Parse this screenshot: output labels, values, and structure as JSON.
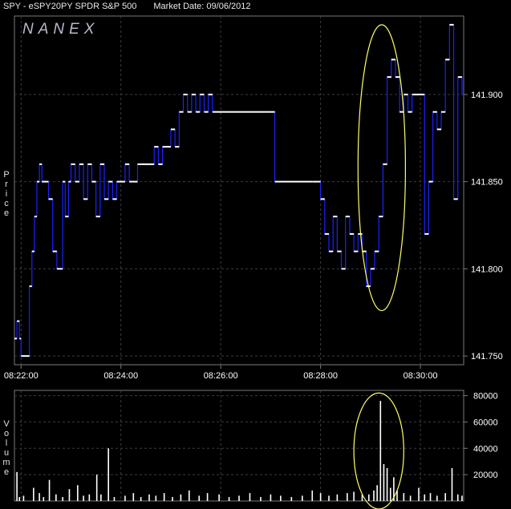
{
  "header": {
    "symbol": "SPY - eSPY20PY SPDR S&P 500",
    "market_date": "Market Date: 09/06/2012"
  },
  "watermark": "NANEX",
  "colors": {
    "background": "#000000",
    "grid": "#3c3c3c",
    "frame": "#7a7a7a",
    "price_line": "#1a22ff",
    "trade_mark": "#ffffff",
    "highlight": "#ffff66",
    "text": "#ffffff"
  },
  "chart_data": [
    {
      "type": "line",
      "ylabel": "Price",
      "ylim": [
        141.745,
        141.945
      ],
      "xlim": [
        "08:21:52",
        "08:30:52"
      ],
      "x_ticks": [
        "08:22:00",
        "08:24:00",
        "08:26:00",
        "08:28:00",
        "08:30:00"
      ],
      "y_ticks": [
        141.75,
        141.8,
        141.85,
        141.9
      ],
      "y_tick_labels": [
        "141.750",
        "141.800",
        "141.850",
        "141.900"
      ],
      "grid": true,
      "price_points": [
        [
          "08:21:52",
          141.76
        ],
        [
          "08:21:55",
          141.77
        ],
        [
          "08:21:58",
          141.76
        ],
        [
          "08:22:00",
          141.75
        ],
        [
          "08:22:10",
          141.79
        ],
        [
          "08:22:13",
          141.81
        ],
        [
          "08:22:16",
          141.83
        ],
        [
          "08:22:19",
          141.85
        ],
        [
          "08:22:22",
          141.86
        ],
        [
          "08:22:25",
          141.85
        ],
        [
          "08:22:33",
          141.84
        ],
        [
          "08:22:38",
          141.81
        ],
        [
          "08:22:43",
          141.8
        ],
        [
          "08:22:50",
          141.85
        ],
        [
          "08:22:53",
          141.83
        ],
        [
          "08:22:57",
          141.85
        ],
        [
          "08:23:00",
          141.86
        ],
        [
          "08:23:05",
          141.85
        ],
        [
          "08:23:10",
          141.86
        ],
        [
          "08:23:15",
          141.84
        ],
        [
          "08:23:20",
          141.86
        ],
        [
          "08:23:25",
          141.85
        ],
        [
          "08:23:30",
          141.83
        ],
        [
          "08:23:35",
          141.86
        ],
        [
          "08:23:40",
          141.84
        ],
        [
          "08:23:45",
          141.85
        ],
        [
          "08:23:50",
          141.84
        ],
        [
          "08:23:55",
          141.85
        ],
        [
          "08:24:05",
          141.86
        ],
        [
          "08:24:10",
          141.85
        ],
        [
          "08:24:20",
          141.86
        ],
        [
          "08:24:35",
          141.86
        ],
        [
          "08:24:40",
          141.87
        ],
        [
          "08:24:45",
          141.86
        ],
        [
          "08:24:50",
          141.87
        ],
        [
          "08:25:00",
          141.88
        ],
        [
          "08:25:05",
          141.87
        ],
        [
          "08:25:10",
          141.89
        ],
        [
          "08:25:15",
          141.9
        ],
        [
          "08:25:20",
          141.89
        ],
        [
          "08:25:25",
          141.9
        ],
        [
          "08:25:30",
          141.89
        ],
        [
          "08:25:35",
          141.9
        ],
        [
          "08:25:40",
          141.89
        ],
        [
          "08:25:45",
          141.9
        ],
        [
          "08:25:50",
          141.89
        ],
        [
          "08:27:00",
          141.89
        ],
        [
          "08:27:05",
          141.85
        ],
        [
          "08:27:50",
          141.85
        ],
        [
          "08:28:00",
          141.84
        ],
        [
          "08:28:05",
          141.82
        ],
        [
          "08:28:10",
          141.81
        ],
        [
          "08:28:15",
          141.83
        ],
        [
          "08:28:20",
          141.81
        ],
        [
          "08:28:25",
          141.8
        ],
        [
          "08:28:30",
          141.83
        ],
        [
          "08:28:35",
          141.82
        ],
        [
          "08:28:40",
          141.81
        ],
        [
          "08:28:45",
          141.82
        ],
        [
          "08:28:50",
          141.81
        ],
        [
          "08:28:55",
          141.79
        ],
        [
          "08:29:00",
          141.8
        ],
        [
          "08:29:05",
          141.81
        ],
        [
          "08:29:10",
          141.83
        ],
        [
          "08:29:15",
          141.86
        ],
        [
          "08:29:20",
          141.91
        ],
        [
          "08:29:25",
          141.92
        ],
        [
          "08:29:30",
          141.91
        ],
        [
          "08:29:35",
          141.89
        ],
        [
          "08:29:40",
          141.9
        ],
        [
          "08:29:45",
          141.89
        ],
        [
          "08:29:50",
          141.9
        ],
        [
          "08:30:00",
          141.9
        ],
        [
          "08:30:05",
          141.82
        ],
        [
          "08:30:10",
          141.85
        ],
        [
          "08:30:15",
          141.89
        ],
        [
          "08:30:20",
          141.88
        ],
        [
          "08:30:25",
          141.89
        ],
        [
          "08:30:30",
          141.92
        ],
        [
          "08:30:35",
          141.94
        ],
        [
          "08:30:40",
          141.84
        ],
        [
          "08:30:45",
          141.91
        ],
        [
          "08:30:50",
          141.9
        ]
      ],
      "highlight_region": {
        "x_from": "08:28:45",
        "x_to": "08:29:42",
        "y_from": 141.776,
        "y_to": 141.94
      }
    },
    {
      "type": "bar",
      "ylabel": "Volume",
      "ylim": [
        0,
        84000
      ],
      "y_ticks": [
        20000,
        40000,
        60000,
        80000
      ],
      "y_tick_labels": [
        "20000",
        "40000",
        "60000",
        "80000"
      ],
      "grid": true,
      "volume_bars": [
        [
          "08:21:55",
          22000
        ],
        [
          "08:21:58",
          3000
        ],
        [
          "08:22:03",
          4000
        ],
        [
          "08:22:15",
          10000
        ],
        [
          "08:22:22",
          6000
        ],
        [
          "08:22:27",
          3000
        ],
        [
          "08:22:34",
          16000
        ],
        [
          "08:22:42",
          5000
        ],
        [
          "08:22:50",
          3000
        ],
        [
          "08:22:58",
          9000
        ],
        [
          "08:23:08",
          12000
        ],
        [
          "08:23:15",
          4000
        ],
        [
          "08:23:22",
          5000
        ],
        [
          "08:23:31",
          20000
        ],
        [
          "08:23:36",
          5000
        ],
        [
          "08:23:45",
          40000
        ],
        [
          "08:23:52",
          3000
        ],
        [
          "08:24:05",
          4000
        ],
        [
          "08:24:15",
          6000
        ],
        [
          "08:24:24",
          3000
        ],
        [
          "08:24:34",
          5000
        ],
        [
          "08:24:42",
          4000
        ],
        [
          "08:24:52",
          6000
        ],
        [
          "08:25:02",
          3000
        ],
        [
          "08:25:12",
          5000
        ],
        [
          "08:25:22",
          8000
        ],
        [
          "08:25:34",
          4000
        ],
        [
          "08:25:44",
          6000
        ],
        [
          "08:25:58",
          5000
        ],
        [
          "08:26:10",
          3000
        ],
        [
          "08:26:22",
          4000
        ],
        [
          "08:26:35",
          6000
        ],
        [
          "08:26:48",
          3000
        ],
        [
          "08:27:00",
          5000
        ],
        [
          "08:27:12",
          4000
        ],
        [
          "08:27:25",
          3000
        ],
        [
          "08:27:38",
          4000
        ],
        [
          "08:27:50",
          8000
        ],
        [
          "08:28:00",
          6000
        ],
        [
          "08:28:10",
          4000
        ],
        [
          "08:28:20",
          5000
        ],
        [
          "08:28:32",
          6000
        ],
        [
          "08:28:40",
          7000
        ],
        [
          "08:28:50",
          5000
        ],
        [
          "08:28:58",
          5000
        ],
        [
          "08:29:04",
          8000
        ],
        [
          "08:29:08",
          12000
        ],
        [
          "08:29:12",
          76000
        ],
        [
          "08:29:16",
          28000
        ],
        [
          "08:29:20",
          25000
        ],
        [
          "08:29:24",
          10000
        ],
        [
          "08:29:28",
          18000
        ],
        [
          "08:29:32",
          8000
        ],
        [
          "08:29:40",
          6000
        ],
        [
          "08:29:48",
          4000
        ],
        [
          "08:29:58",
          10000
        ],
        [
          "08:30:05",
          5000
        ],
        [
          "08:30:12",
          6000
        ],
        [
          "08:30:20",
          4000
        ],
        [
          "08:30:30",
          6000
        ],
        [
          "08:30:38",
          25000
        ],
        [
          "08:30:45",
          5000
        ],
        [
          "08:30:50",
          4000
        ]
      ],
      "highlight_region": {
        "x_from": "08:28:40",
        "x_to": "08:29:40",
        "y_from": 0,
        "y_to": 82000
      }
    }
  ]
}
